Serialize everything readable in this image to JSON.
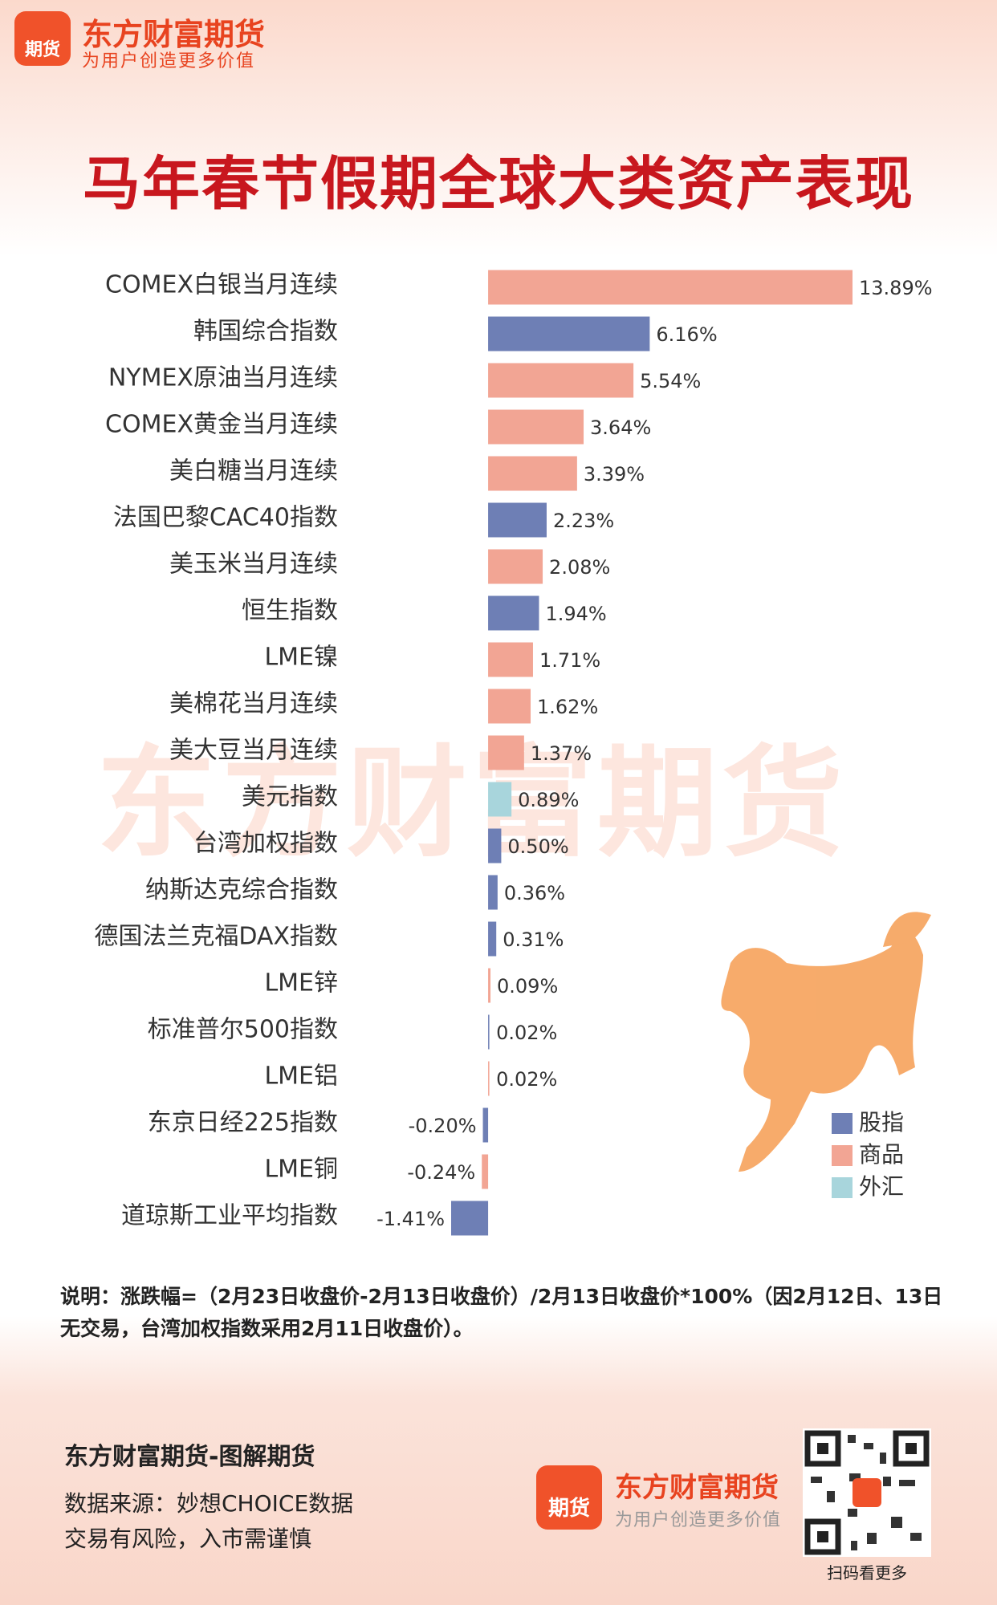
{
  "header": {
    "logo": "期货",
    "brand": "东方财富期货",
    "slogan": "为用户创造更多价值"
  },
  "title": "马年春节假期全球大类资产表现",
  "watermark": "东方财富期货",
  "chart_data": {
    "type": "hbar",
    "categories": [
      "COMEX白银当月连续",
      "韩国综合指数",
      "NYMEX原油当月连续",
      "COMEX黄金当月连续",
      "美白糖当月连续",
      "法国巴黎CAC40指数",
      "美玉米当月连续",
      "恒生指数",
      "LME镍",
      "美棉花当月连续",
      "美大豆当月连续",
      "美元指数",
      "台湾加权指数",
      "纳斯达克综合指数",
      "德国法兰克福DAX指数",
      "LME锌",
      "标准普尔500指数",
      "LME铝",
      "东京日经225指数",
      "LME铜",
      "道琼斯工业平均指数"
    ],
    "values": [
      13.89,
      6.16,
      5.54,
      3.64,
      3.39,
      2.23,
      2.08,
      1.94,
      1.71,
      1.62,
      1.37,
      0.89,
      0.5,
      0.36,
      0.31,
      0.09,
      0.02,
      0.02,
      -0.2,
      -0.24,
      -1.41
    ],
    "value_labels": [
      "13.89%",
      "6.16%",
      "5.54%",
      "3.64%",
      "3.39%",
      "2.23%",
      "2.08%",
      "1.94%",
      "1.71%",
      "1.62%",
      "1.37%",
      "0.89%",
      "0.50%",
      "0.36%",
      "0.31%",
      "0.09%",
      "0.02%",
      "0.02%",
      "-0.20%",
      "-0.24%",
      "-1.41%"
    ],
    "colors": [
      "#f2a594",
      "#6e7fb5",
      "#f2a594",
      "#f2a594",
      "#f2a594",
      "#6e7fb5",
      "#f2a594",
      "#6e7fb5",
      "#f2a594",
      "#f2a594",
      "#f2a594",
      "#a8d5dc",
      "#6e7fb5",
      "#6e7fb5",
      "#6e7fb5",
      "#f2a594",
      "#6e7fb5",
      "#f2a594",
      "#6e7fb5",
      "#f2a594",
      "#6e7fb5"
    ],
    "legend": [
      {
        "name": "股指",
        "color": "#6e7fb5"
      },
      {
        "name": "商品",
        "color": "#f2a594"
      },
      {
        "name": "外汇",
        "color": "#a8d5dc"
      }
    ]
  },
  "note": "说明：涨跌幅=（2月23日收盘价-2月13日收盘价）/2月13日收盘价*100%（因2月12日、13日无交易，台湾加权指数采用2月11日收盘价）。",
  "footer": {
    "title": "东方财富期货-图解期货",
    "source": "数据来源：妙想CHOICE数据",
    "risk": "交易有风险，入市需谨慎",
    "logo": "期货",
    "brand": "东方财富期货",
    "slogan": "为用户创造更多价值",
    "qr_caption": "扫码看更多"
  }
}
